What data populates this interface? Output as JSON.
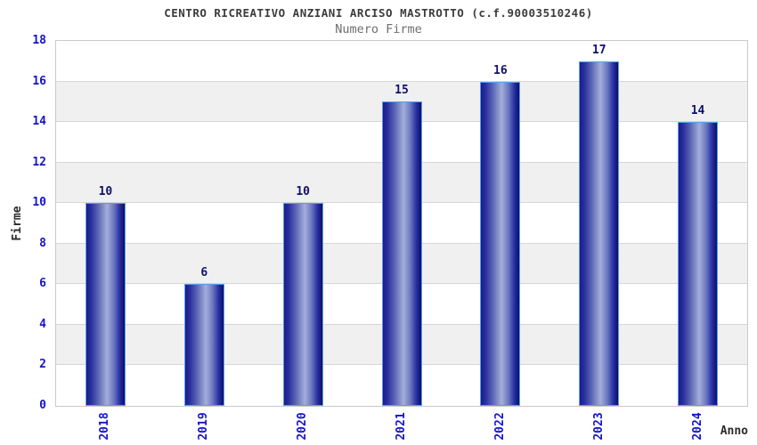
{
  "chart_data": {
    "type": "bar",
    "title": "CENTRO RICREATIVO ANZIANI ARCISO MASTROTTO (c.f.90003510246)",
    "subtitle": "Numero Firme",
    "xlabel": "Anno",
    "ylabel": "Firme",
    "categories": [
      "2018",
      "2019",
      "2020",
      "2021",
      "2022",
      "2023",
      "2024"
    ],
    "values": [
      10,
      6,
      10,
      15,
      16,
      17,
      14
    ],
    "ylim": [
      0,
      18
    ],
    "ytick_step": 2,
    "legend": "none",
    "grid": "horizontal-bands-alternating",
    "colors": {
      "bar_dark": "#1b1b8c",
      "bar_highlight": "#a4aeda",
      "bar_border": "#55a0e8",
      "tick_label": "#1414cc",
      "value_label": "#10106e",
      "band_gray": "#f0f0f0",
      "band_white": "#ffffff",
      "gridline": "#d6d6d6",
      "plot_border": "#c9c9c9",
      "title": "#3c3c3c",
      "subtitle": "#6e6e6e",
      "axis_title": "#2b2b2b"
    }
  }
}
